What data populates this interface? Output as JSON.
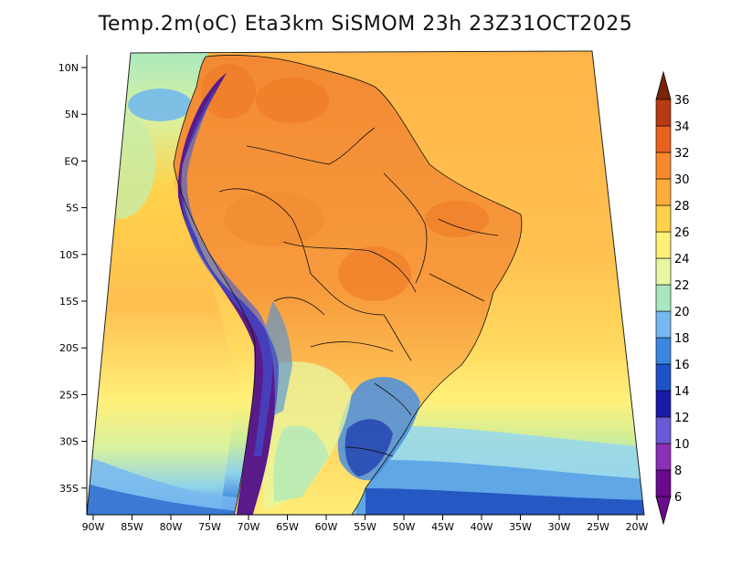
{
  "title": "Temp.2m(oC) Eta3km SiSMOM 23h 23Z31OCT2025",
  "lat_ticks": [
    "10N",
    "5N",
    "EQ",
    "5S",
    "10S",
    "15S",
    "20S",
    "25S",
    "30S",
    "35S"
  ],
  "lon_ticks": [
    "90W",
    "85W",
    "80W",
    "75W",
    "70W",
    "65W",
    "60W",
    "55W",
    "50W",
    "45W",
    "40W",
    "35W",
    "30W",
    "25W",
    "20W"
  ],
  "colorbar": {
    "labels": [
      "6",
      "8",
      "10",
      "12",
      "14",
      "16",
      "18",
      "20",
      "22",
      "24",
      "26",
      "28",
      "30",
      "32",
      "34",
      "36"
    ],
    "colors": [
      "#6a0a8c",
      "#8e2fb8",
      "#6a5ad8",
      "#1a1aa8",
      "#1f52c8",
      "#3d86e0",
      "#78b8f0",
      "#a8e8c0",
      "#e8f8a0",
      "#fff07a",
      "#ffd24a",
      "#ffac3a",
      "#f98a2c",
      "#e8621e",
      "#b83a12",
      "#7a2408"
    ]
  },
  "colors": {
    "ocean_warm": "#ffb84a",
    "ocean_mid": "#ffe46a",
    "ocean_cool": "#cfee9a",
    "land_warm": "#f7923a",
    "andes": "#5a1a8a",
    "south_cool": "#4a8ee0",
    "outline": "#111111"
  }
}
